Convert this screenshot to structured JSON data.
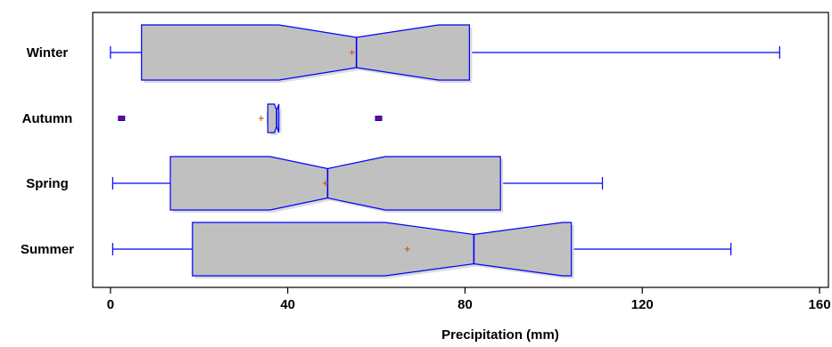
{
  "chart_data": {
    "type": "box",
    "orientation": "horizontal",
    "notched": true,
    "title": "",
    "xlabel": "Precipitation (mm)",
    "ylabel": "",
    "xlim": [
      -4,
      162
    ],
    "xticks": [
      0,
      40,
      80,
      120,
      160
    ],
    "xtick_labels": [
      "0",
      "40",
      "80",
      "120",
      "160"
    ],
    "grid": false,
    "categories": [
      "Winter",
      "Autumn",
      "Spring",
      "Summer"
    ],
    "boxes": [
      {
        "name": "Winter",
        "whisker_low": 0,
        "q1": 7,
        "median": 55.5,
        "q3": 81,
        "whisker_high": 151,
        "mean": 54.5,
        "notch_low": 38,
        "notch_high": 74,
        "outliers": []
      },
      {
        "name": "Autumn",
        "whisker_low": 35.5,
        "q1": 35.5,
        "median": 37.5,
        "q3": 38,
        "whisker_high": 38,
        "mean": 34,
        "notch_low": 37,
        "notch_high": 38,
        "outliers": [
          2.5,
          60.5
        ]
      },
      {
        "name": "Spring",
        "whisker_low": 0.5,
        "q1": 13.5,
        "median": 49,
        "q3": 88,
        "whisker_high": 111,
        "mean": 48.5,
        "notch_low": 36,
        "notch_high": 62,
        "outliers": []
      },
      {
        "name": "Summer",
        "whisker_low": 0.5,
        "q1": 18.5,
        "median": 82,
        "q3": 104,
        "whisker_high": 140,
        "mean": 67,
        "notch_low": 62,
        "notch_high": 102,
        "outliers": []
      }
    ],
    "colors": {
      "box_fill": "#c0c0c0",
      "box_stroke": "#0000ff",
      "whisker": "#0000ff",
      "mean_marker": "#c85000",
      "outlier_fill": "#8b0057",
      "outlier_stroke": "#0000ff",
      "axes": "#000000",
      "shadow": "#dcdcdc"
    }
  }
}
